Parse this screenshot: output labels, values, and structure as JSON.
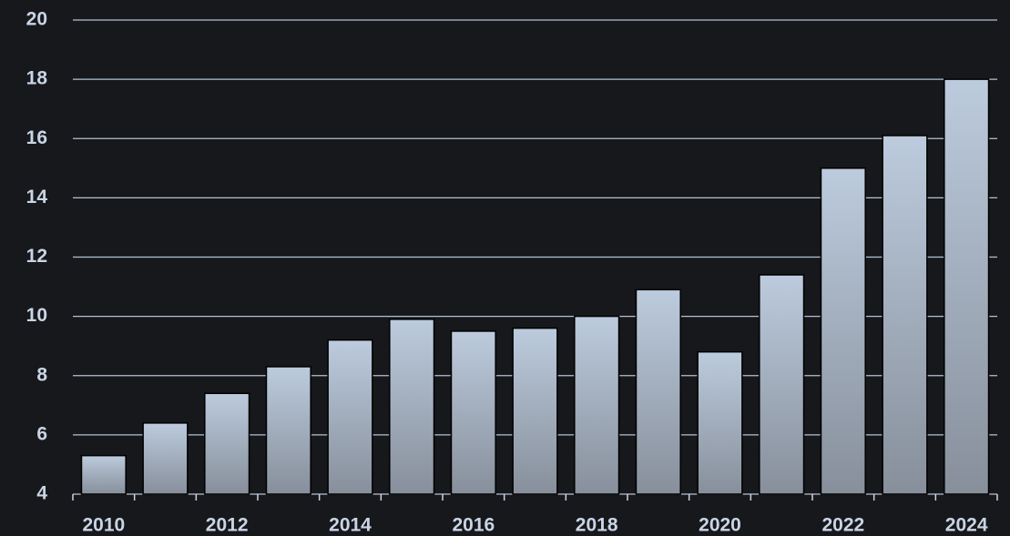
{
  "chart_data": {
    "type": "bar",
    "categories": [
      "2010",
      null,
      "2012",
      null,
      "2014",
      null,
      "2016",
      null,
      "2018",
      null,
      "2020",
      null,
      "2022",
      null,
      "2024"
    ],
    "values": [
      5.3,
      6.4,
      7.4,
      8.3,
      9.2,
      9.9,
      9.5,
      9.6,
      10.0,
      10.9,
      8.8,
      11.4,
      15.0,
      16.1,
      18.0
    ],
    "color": "#a8b4c4",
    "ylim": [
      4,
      20
    ],
    "yticks": [
      4,
      6,
      8,
      10,
      12,
      14,
      16,
      18,
      20
    ],
    "grid": true
  }
}
